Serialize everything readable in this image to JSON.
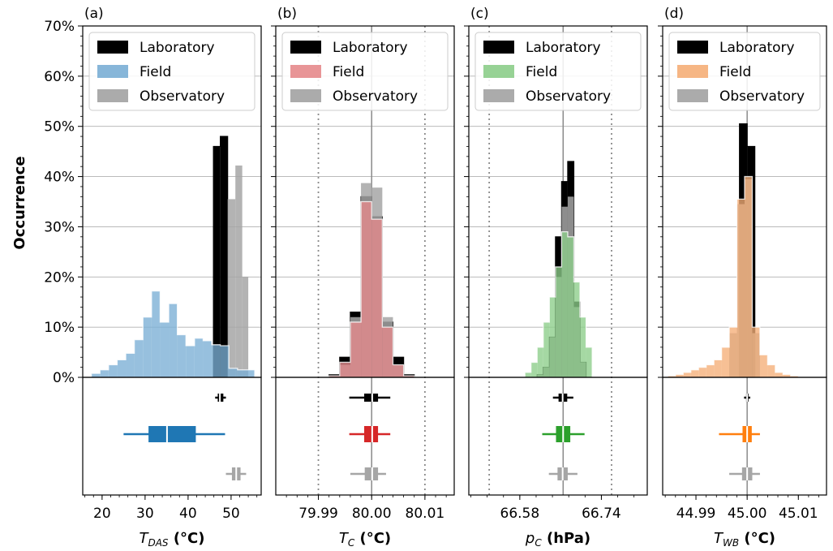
{
  "figure": {
    "ylabel": "Occurrence",
    "y_ticks": [
      "0%",
      "10%",
      "20%",
      "30%",
      "40%",
      "50%",
      "60%",
      "70%"
    ],
    "legend_series": [
      "Laboratory",
      "Field",
      "Observatory"
    ]
  },
  "chart_data": [
    {
      "type": "bar",
      "panel": "(a)",
      "xlabel_main": "T",
      "xlabel_sub": "DAS",
      "xlabel_unit": " (°C)",
      "xlim": [
        15.5,
        57
      ],
      "ylim": [
        0,
        70
      ],
      "x_ticks": [
        20,
        30,
        40,
        50
      ],
      "x_tick_labels": [
        "20",
        "30",
        "40",
        "50"
      ],
      "grid": "horizontal",
      "legend_position": "top",
      "colors": {
        "Laboratory": "#000000",
        "Field": "#7aaed5",
        "Observatory": "#a6a6a6"
      },
      "series": [
        {
          "name": "Laboratory",
          "edges": [
            45.9,
            47.5,
            49.2
          ],
          "values": [
            46,
            48
          ]
        },
        {
          "name": "Field",
          "edges": [
            17.5,
            19.5,
            21.5,
            23.5,
            25.5,
            27.5,
            29.5,
            31.5,
            33.5,
            35.5,
            37.5,
            39.5,
            41.5,
            43.5,
            45.5,
            47.5,
            49.5,
            51.5,
            53.5,
            55.5
          ],
          "values": [
            0.8,
            1.5,
            2.5,
            3.5,
            4.8,
            7.5,
            12,
            17.2,
            11,
            14.7,
            8.5,
            6.3,
            7.8,
            7.3,
            6.5,
            6.3,
            1.8,
            1.5,
            1.5
          ]
        },
        {
          "name": "Observatory",
          "edges": [
            49.2,
            51.0,
            52.6,
            54.0
          ],
          "values": [
            35.5,
            42.2,
            20
          ]
        }
      ],
      "boxplots": [
        {
          "name": "Laboratory",
          "whisker": [
            46.3,
            48.8
          ],
          "q1": 46.9,
          "median": 47.4,
          "q3": 48.2
        },
        {
          "name": "Field",
          "whisker": [
            25,
            48.6
          ],
          "q1": 30.8,
          "median": 35.1,
          "q3": 41.8
        },
        {
          "name": "Observatory",
          "whisker": [
            48.8,
            53.5
          ],
          "q1": 50.2,
          "median": 51.2,
          "q3": 52.2
        }
      ]
    },
    {
      "type": "bar",
      "panel": "(b)",
      "xlabel_main": "T",
      "xlabel_sub": "C",
      "xlabel_unit": " (°C)",
      "xlim": [
        79.982,
        80.0155
      ],
      "ylim": [
        0,
        70
      ],
      "x_ticks": [
        79.99,
        80.0,
        80.01
      ],
      "x_tick_labels": [
        "79.99",
        "80.00",
        "80.01"
      ],
      "vlines_dotted": [
        79.99,
        80.01
      ],
      "vline_solid": 80.0,
      "grid": "horizontal",
      "legend_position": "top",
      "colors": {
        "Laboratory": "#000000",
        "Field": "#e6898c",
        "Observatory": "#a6a6a6"
      },
      "series": [
        {
          "name": "Laboratory",
          "edges": [
            79.992,
            79.994,
            79.996,
            79.998,
            80.0,
            80.002,
            80.004,
            80.006,
            80.008
          ],
          "values": [
            0.5,
            4,
            13,
            36,
            32,
            11,
            4,
            0.5
          ]
        },
        {
          "name": "Field",
          "edges": [
            79.992,
            79.994,
            79.996,
            79.998,
            80.0,
            80.002,
            80.004,
            80.006,
            80.008
          ],
          "values": [
            0.3,
            3,
            11,
            35,
            31.5,
            10,
            2.5,
            0.3
          ]
        },
        {
          "name": "Observatory",
          "edges": [
            79.994,
            79.996,
            79.998,
            80.0,
            80.002,
            80.004,
            80.006
          ],
          "values": [
            2.5,
            12,
            38.7,
            37.8,
            12,
            2.5
          ]
        }
      ],
      "boxplots": [
        {
          "name": "Laboratory",
          "whisker": [
            79.9958,
            80.0035
          ],
          "q1": 79.9986,
          "median": 80.0001,
          "q3": 80.0012
        },
        {
          "name": "Field",
          "whisker": [
            79.9958,
            80.0035
          ],
          "q1": 79.9986,
          "median": 80.0001,
          "q3": 80.0012
        },
        {
          "name": "Observatory",
          "whisker": [
            79.996,
            80.0027
          ],
          "q1": 79.9987,
          "median": 80.0001,
          "q3": 80.0012
        }
      ]
    },
    {
      "type": "bar",
      "panel": "(c)",
      "xlabel_main": "p",
      "xlabel_sub": "C",
      "xlabel_unit": " (hPa)",
      "xlim": [
        66.48,
        66.83
      ],
      "ylim": [
        0,
        70
      ],
      "x_ticks": [
        66.58,
        66.74
      ],
      "x_tick_labels": [
        "66.58",
        "66.74"
      ],
      "vlines_dotted": [
        66.52,
        66.76
      ],
      "vline_solid": 66.665,
      "grid": "horizontal",
      "legend_position": "top",
      "colors": {
        "Laboratory": "#000000",
        "Field": "#8ccd89",
        "Observatory": "#a6a6a6"
      },
      "series": [
        {
          "name": "Laboratory",
          "edges": [
            66.614,
            66.626,
            66.638,
            66.65,
            66.662,
            66.674,
            66.686,
            66.698,
            66.71
          ],
          "values": [
            0.5,
            2,
            8,
            28,
            39,
            43,
            15,
            3
          ]
        },
        {
          "name": "Field",
          "edges": [
            66.59,
            66.602,
            66.614,
            66.626,
            66.638,
            66.65,
            66.662,
            66.674,
            66.686,
            66.698,
            66.71,
            66.722
          ],
          "values": [
            1,
            3,
            6,
            11,
            16,
            22,
            29,
            28,
            19,
            12,
            6
          ]
        },
        {
          "name": "Observatory",
          "edges": [
            66.614,
            66.626,
            66.638,
            66.65,
            66.662,
            66.674,
            66.686,
            66.698,
            66.71
          ],
          "values": [
            0.5,
            2,
            8,
            20,
            34,
            36,
            14,
            3
          ]
        }
      ],
      "boxplots": [
        {
          "name": "Laboratory",
          "whisker": [
            66.645,
            66.685
          ],
          "q1": 66.656,
          "median": 66.664,
          "q3": 66.673
        },
        {
          "name": "Field",
          "whisker": [
            66.624,
            66.707
          ],
          "q1": 66.651,
          "median": 66.665,
          "q3": 66.679
        },
        {
          "name": "Observatory",
          "whisker": [
            66.637,
            66.693
          ],
          "q1": 66.654,
          "median": 66.664,
          "q3": 66.674
        }
      ]
    },
    {
      "type": "bar",
      "panel": "(d)",
      "xlabel_main": "T",
      "xlabel_sub": "WB",
      "xlabel_unit": " (°C)",
      "xlim": [
        44.9835,
        45.0155
      ],
      "ylim": [
        0,
        70
      ],
      "x_ticks": [
        44.99,
        45.0,
        45.01
      ],
      "x_tick_labels": [
        "44.99",
        "45.00",
        "45.01"
      ],
      "vline_solid": 45.0,
      "grid": "horizontal",
      "legend_position": "top",
      "colors": {
        "Laboratory": "#000000",
        "Field": "#f5ae77",
        "Observatory": "#a6a6a6"
      },
      "series": [
        {
          "name": "Laboratory",
          "edges": [
            44.9985,
            45.0,
            45.0015
          ],
          "values": [
            50.5,
            46
          ]
        },
        {
          "name": "Field",
          "edges": [
            44.9845,
            44.986,
            44.9875,
            44.989,
            44.9905,
            44.992,
            44.9935,
            44.995,
            44.9965,
            44.998,
            44.9995,
            45.001,
            45.0025,
            45.004,
            45.0055,
            45.007,
            45.0085,
            45.01
          ],
          "values": [
            0.3,
            0.6,
            1,
            1.5,
            2,
            2.5,
            3.5,
            6,
            10,
            35.5,
            40,
            10,
            4.5,
            2.5,
            1,
            0.6,
            0.3
          ]
        },
        {
          "name": "Observatory",
          "edges": [
            44.9965,
            44.998,
            44.9995,
            45.001,
            45.0025
          ],
          "values": [
            8.8,
            34.5,
            39.5,
            8.8
          ]
        }
      ],
      "boxplots": [
        {
          "name": "Laboratory",
          "whisker": [
            44.9994,
            45.0006
          ],
          "q1": 44.9998,
          "median": 45.0,
          "q3": 45.0002
        },
        {
          "name": "Field",
          "whisker": [
            44.9945,
            45.0025
          ],
          "q1": 44.9991,
          "median": 45.0,
          "q3": 45.0009
        },
        {
          "name": "Observatory",
          "whisker": [
            44.9965,
            45.0025
          ],
          "q1": 44.999,
          "median": 45.0,
          "q3": 45.001
        }
      ]
    }
  ]
}
